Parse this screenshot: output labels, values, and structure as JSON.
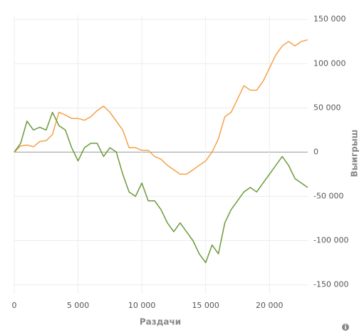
{
  "chart_data": {
    "type": "line",
    "x_label": "Раздачи",
    "y_label": "Выигрыш",
    "x": [
      0,
      500,
      1000,
      1500,
      2000,
      2500,
      3000,
      3500,
      4000,
      4500,
      5000,
      5500,
      6000,
      6500,
      7000,
      7500,
      8000,
      8500,
      9000,
      9500,
      10000,
      10500,
      11000,
      11500,
      12000,
      12500,
      13000,
      13500,
      14000,
      14500,
      15000,
      15500,
      16000,
      16500,
      17000,
      17500,
      18000,
      18500,
      19000,
      19500,
      20000,
      20500,
      21000,
      21500,
      22000,
      22500,
      23000
    ],
    "series": [
      {
        "color": "#f4a24a",
        "values": [
          0,
          7000,
          8000,
          6000,
          12000,
          13000,
          20000,
          45000,
          42000,
          38000,
          38000,
          36000,
          40000,
          47000,
          52000,
          45000,
          35000,
          25000,
          5000,
          5000,
          2000,
          2000,
          -5000,
          -8000,
          -15000,
          -20000,
          -25000,
          -25000,
          -20000,
          -15000,
          -10000,
          0,
          15000,
          40000,
          45000,
          60000,
          75000,
          70000,
          70000,
          80000,
          95000,
          110000,
          120000,
          125000,
          120000,
          125000,
          127000
        ]
      },
      {
        "color": "#6a9a3a",
        "values": [
          0,
          10000,
          35000,
          25000,
          28000,
          25000,
          45000,
          30000,
          25000,
          5000,
          -10000,
          5000,
          10000,
          10000,
          -5000,
          5000,
          0,
          -25000,
          -45000,
          -50000,
          -35000,
          -55000,
          -55000,
          -65000,
          -80000,
          -90000,
          -80000,
          -90000,
          -100000,
          -115000,
          -125000,
          -105000,
          -115000,
          -80000,
          -65000,
          -55000,
          -45000,
          -40000,
          -45000,
          -35000,
          -25000,
          -15000,
          -5000,
          -15000,
          -30000,
          -35000,
          -40000
        ]
      }
    ],
    "xlim": [
      0,
      23000
    ],
    "xticks": [
      0,
      {
        "value": 5000,
        "label": "5 000"
      },
      {
        "value": 10000,
        "label": "10 000"
      },
      {
        "value": 15000,
        "label": "15 000"
      },
      {
        "value": 20000,
        "label": "20 000"
      }
    ],
    "ylim": [
      -160000,
      155000
    ],
    "yticks": [
      {
        "value": -150000,
        "label": "-150 000"
      },
      {
        "value": -100000,
        "label": "-100 000"
      },
      {
        "value": -50000,
        "label": "-50 000"
      },
      0,
      {
        "value": 50000,
        "label": "50 000"
      },
      {
        "value": 100000,
        "label": "100 000"
      },
      {
        "value": 150000,
        "label": "150 000"
      }
    ],
    "grid": true
  }
}
